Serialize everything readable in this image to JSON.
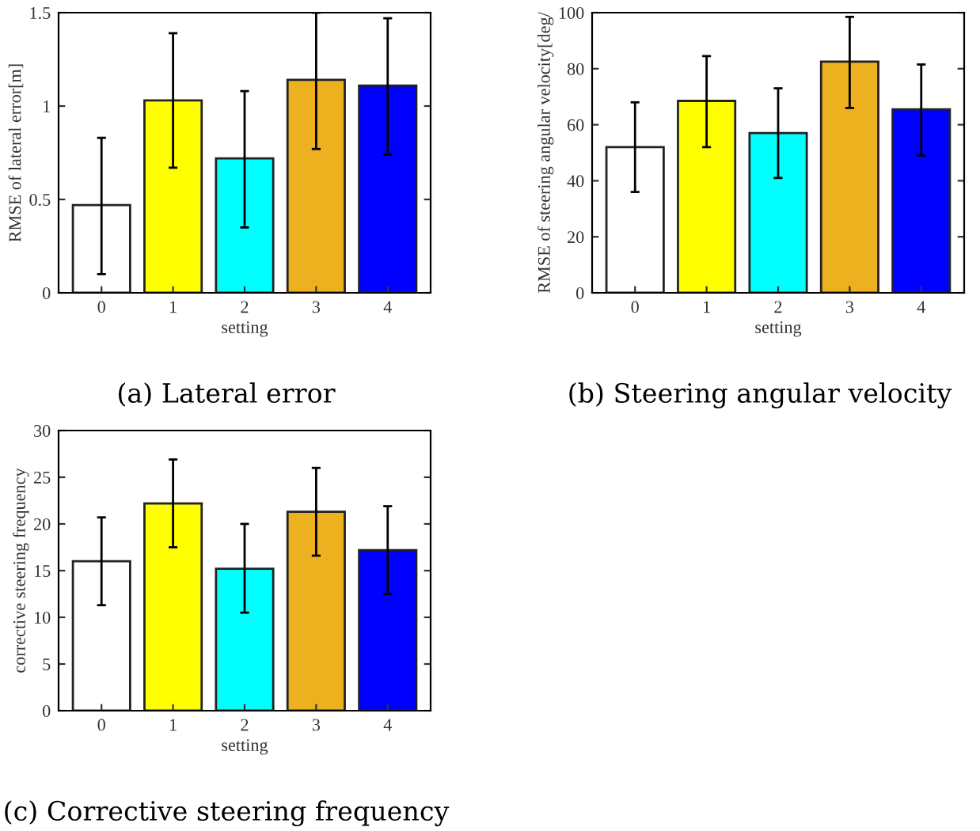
{
  "chart_data": [
    {
      "type": "bar",
      "title": "(a) Lateral error",
      "xlabel": "setting",
      "ylabel": "RMSE of lateral error[m]",
      "categories": [
        "0",
        "1",
        "2",
        "3",
        "4"
      ],
      "values": [
        0.47,
        1.03,
        0.72,
        1.14,
        1.11
      ],
      "colors": [
        "#ffffff",
        "#ffff00",
        "#00ffff",
        "#edb120",
        "#0000ff"
      ],
      "errors": [
        [
          0.1,
          0.83
        ],
        [
          0.67,
          1.39
        ],
        [
          0.35,
          1.08
        ],
        [
          0.77,
          1.5
        ],
        [
          0.74,
          1.47
        ]
      ],
      "ylim": [
        0,
        1.5
      ],
      "yticks": [
        0,
        0.5,
        1,
        1.5
      ],
      "grid": false
    },
    {
      "type": "bar",
      "title": "(b) Steering angular velocity",
      "xlabel": "setting",
      "ylabel": "RMSE of steering angular velocity[deg/",
      "categories": [
        "0",
        "1",
        "2",
        "3",
        "4"
      ],
      "values": [
        52,
        68.5,
        57,
        82.5,
        65.5
      ],
      "colors": [
        "#ffffff",
        "#ffff00",
        "#00ffff",
        "#edb120",
        "#0000ff"
      ],
      "errors": [
        [
          36,
          68
        ],
        [
          52,
          84.5
        ],
        [
          41,
          73
        ],
        [
          66,
          98.5
        ],
        [
          49,
          81.5
        ]
      ],
      "ylim": [
        0,
        100
      ],
      "yticks": [
        0,
        20,
        40,
        60,
        80,
        100
      ],
      "grid": false
    },
    {
      "type": "bar",
      "title": "(c) Corrective steering frequency",
      "xlabel": "setting",
      "ylabel": "corrective steering frequency",
      "categories": [
        "0",
        "1",
        "2",
        "3",
        "4"
      ],
      "values": [
        16,
        22.2,
        15.2,
        21.3,
        17.2
      ],
      "colors": [
        "#ffffff",
        "#ffff00",
        "#00ffff",
        "#edb120",
        "#0000ff"
      ],
      "errors": [
        [
          11.3,
          20.7
        ],
        [
          17.5,
          26.9
        ],
        [
          10.5,
          20
        ],
        [
          16.6,
          26
        ],
        [
          12.5,
          21.9
        ]
      ],
      "ylim": [
        0,
        30
      ],
      "yticks": [
        0,
        5,
        10,
        15,
        20,
        25,
        30
      ],
      "grid": false
    }
  ]
}
